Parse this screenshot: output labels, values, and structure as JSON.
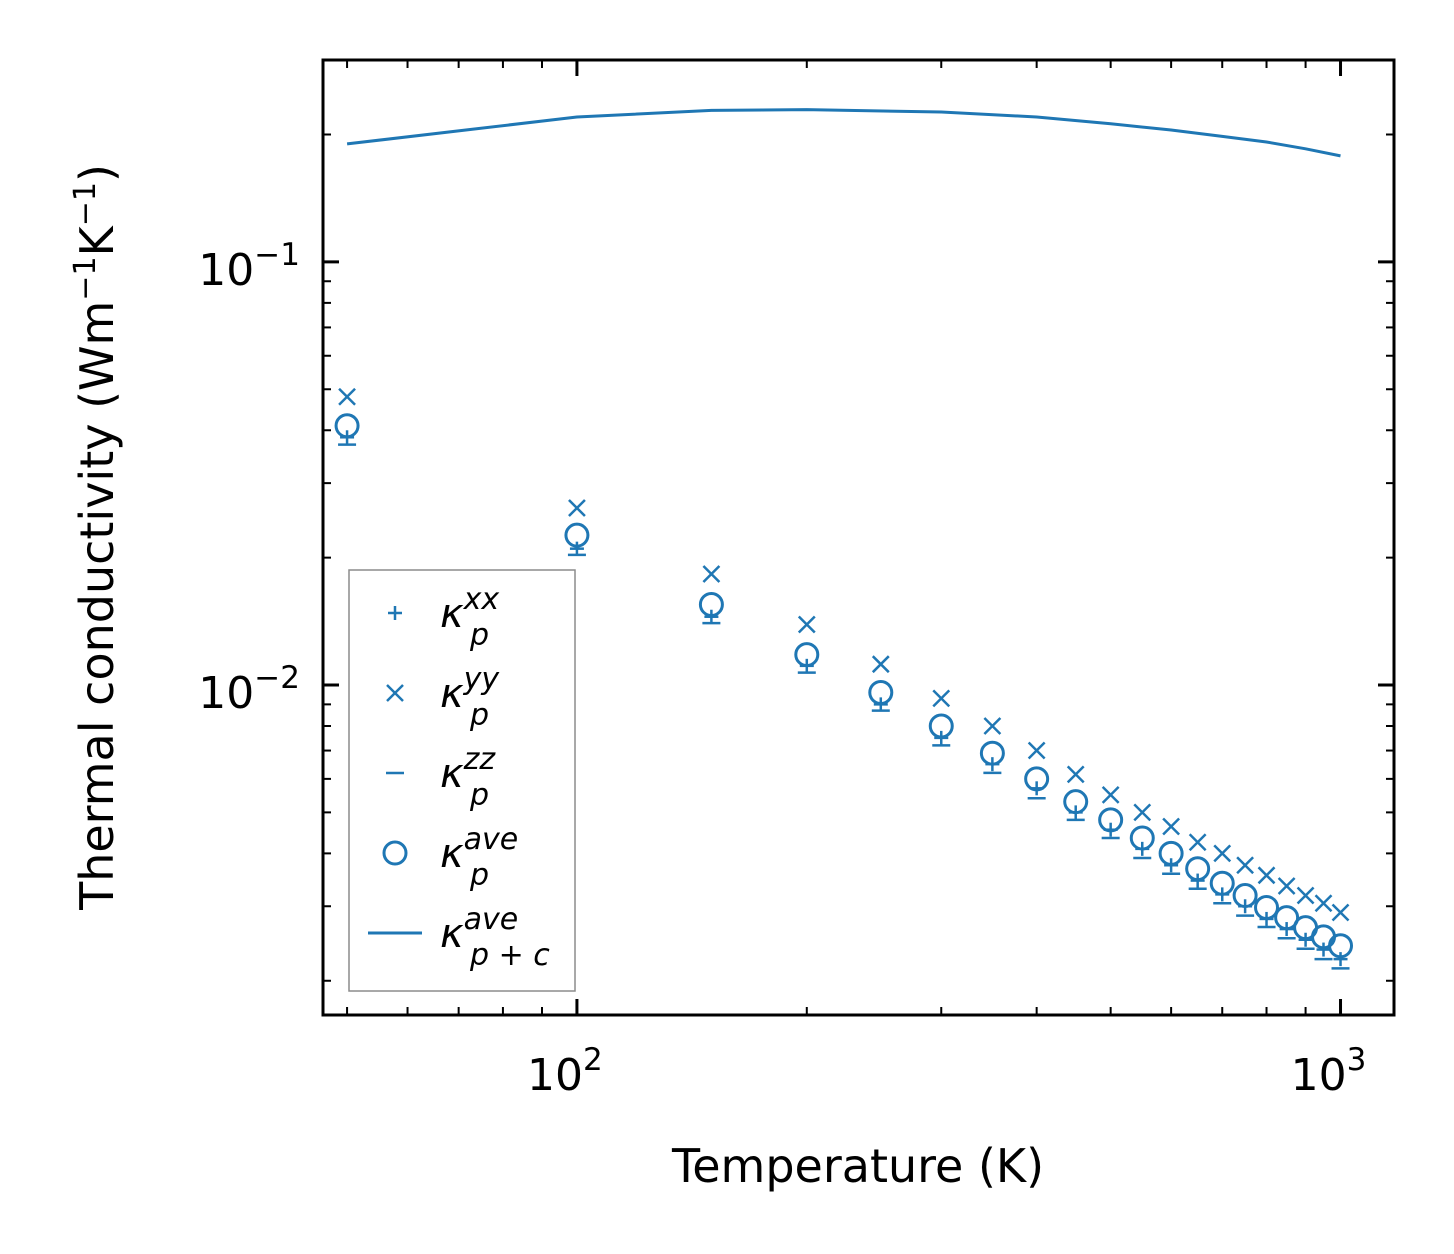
{
  "colors": {
    "series": "#1f77b4",
    "axis": "#000000",
    "legend_border": "#8c8c8c"
  },
  "chart_data": {
    "type": "scatter",
    "xscale": "log",
    "yscale": "log",
    "xlabel": "Temperature (K)",
    "ylabel_main": "Thermal conductivity (Wm",
    "ylabel_exp1": "−1",
    "ylabel_mid": "K",
    "ylabel_exp2": "−1",
    "ylabel_end": ")",
    "xlim": [
      46.5,
      1175
    ],
    "ylim": [
      0.00166,
      0.3
    ],
    "xticks": [
      {
        "value": 100,
        "base": "10",
        "exp": "2"
      },
      {
        "value": 1000,
        "base": "10",
        "exp": "3"
      }
    ],
    "yticks": [
      {
        "value": 0.1,
        "base": "10",
        "exp": "−1"
      },
      {
        "value": 0.01,
        "base": "10",
        "exp": "−2"
      }
    ],
    "temperatures": [
      50,
      100,
      150,
      200,
      250,
      300,
      350,
      400,
      450,
      500,
      550,
      600,
      650,
      700,
      750,
      800,
      850,
      900,
      950,
      1000
    ],
    "series": [
      {
        "name": "kappa_p_xx",
        "marker": "plus",
        "values": [
          0.0385,
          0.021,
          0.0145,
          0.0111,
          0.009,
          0.0075,
          0.0065,
          0.0057,
          0.005,
          0.00455,
          0.0041,
          0.00375,
          0.00345,
          0.0032,
          0.003,
          0.0028,
          0.00265,
          0.0025,
          0.00237,
          0.00225
        ]
      },
      {
        "name": "kappa_p_yy",
        "marker": "x",
        "values": [
          0.048,
          0.0262,
          0.0183,
          0.0139,
          0.0112,
          0.0093,
          0.008,
          0.007,
          0.00615,
          0.0055,
          0.005,
          0.00463,
          0.00425,
          0.004,
          0.00375,
          0.00355,
          0.00335,
          0.00318,
          0.00305,
          0.0029
        ]
      },
      {
        "name": "kappa_p_zz",
        "marker": "hline",
        "values": [
          0.037,
          0.0203,
          0.014,
          0.0107,
          0.0087,
          0.0072,
          0.0062,
          0.0054,
          0.0048,
          0.00435,
          0.0039,
          0.00358,
          0.0033,
          0.00305,
          0.00285,
          0.00268,
          0.00252,
          0.00238,
          0.00225,
          0.00214
        ]
      },
      {
        "name": "kappa_p_ave",
        "marker": "circle",
        "values": [
          0.041,
          0.0226,
          0.0155,
          0.0118,
          0.0096,
          0.008,
          0.0069,
          0.006,
          0.0053,
          0.0048,
          0.00435,
          0.004,
          0.00368,
          0.0034,
          0.00318,
          0.00298,
          0.00282,
          0.00267,
          0.00254,
          0.00242
        ]
      },
      {
        "name": "kappa_pc_ave",
        "marker": "line",
        "x": [
          50,
          100,
          150,
          200,
          300,
          400,
          500,
          600,
          700,
          800,
          900,
          1000
        ],
        "values": [
          0.19,
          0.22,
          0.228,
          0.229,
          0.226,
          0.22,
          0.212,
          0.205,
          0.198,
          0.192,
          0.185,
          0.178
        ]
      }
    ],
    "legend": {
      "placement": "lower-left",
      "entries": [
        {
          "marker": "plus",
          "base": "κ",
          "sup": "xx",
          "sub": "p"
        },
        {
          "marker": "x",
          "base": "κ",
          "sup": "yy",
          "sub": "p"
        },
        {
          "marker": "hline",
          "base": "κ",
          "sup": "zz",
          "sub": "p"
        },
        {
          "marker": "circle",
          "base": "κ",
          "sup": "ave",
          "sub": "p"
        },
        {
          "marker": "line",
          "base": "κ",
          "sup": "ave",
          "sub": "p + c"
        }
      ]
    }
  }
}
